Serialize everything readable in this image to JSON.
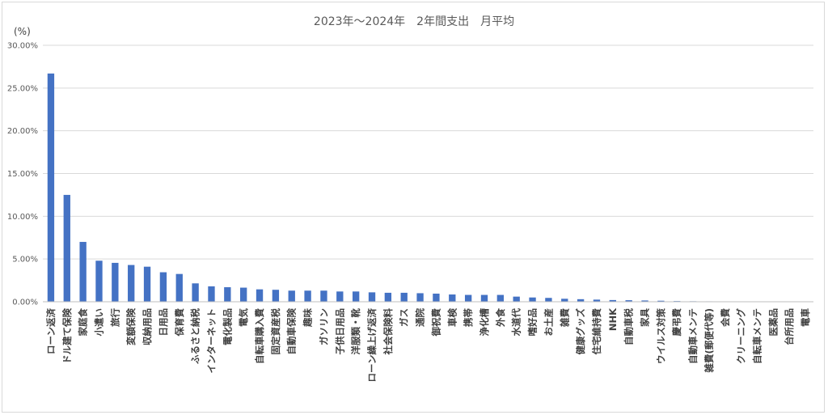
{
  "chart_data": {
    "type": "bar",
    "title": "2023年～2024年　2年間支出　月平均",
    "ylabel": "(%)",
    "xlabel": "",
    "ylim": [
      0,
      30
    ],
    "yticks": [
      "0.00%",
      "5.00%",
      "10.00%",
      "15.00%",
      "20.00%",
      "25.00%",
      "30.00%"
    ],
    "grid": true,
    "legend": "none",
    "bar_color": "#4472c4",
    "categories": [
      "ローン返済",
      "ドル建て保険",
      "家庭食",
      "小遣い",
      "旅行",
      "変額保険",
      "収納用品",
      "日用品",
      "保育費",
      "ふるさと納税",
      "インターネット",
      "電化製品",
      "電気",
      "自転車購入費",
      "固定資産税",
      "自動車保険",
      "趣味",
      "ガソリン",
      "子供日用品",
      "洋服類・靴",
      "ローン繰上げ返済",
      "社会保険料",
      "ガス",
      "通院",
      "御祝費",
      "車検",
      "携帯",
      "浄化槽",
      "外食",
      "水道代",
      "嗜好品",
      "お土産",
      "雑費",
      "健康グッズ",
      "住宅維持費",
      "NHK",
      "自動車税",
      "家具",
      "ウイルス対策",
      "慶弔費",
      "自動車メンテ",
      "雑費(郵便代等)",
      "会費",
      "クリーニング",
      "自転車メンテ",
      "医薬品",
      "台所用品",
      "電車"
    ],
    "values": [
      26.7,
      12.5,
      7.0,
      4.8,
      4.55,
      4.3,
      4.1,
      3.45,
      3.25,
      2.15,
      1.8,
      1.7,
      1.65,
      1.45,
      1.4,
      1.3,
      1.3,
      1.3,
      1.2,
      1.2,
      1.1,
      1.05,
      1.05,
      1.0,
      0.95,
      0.85,
      0.8,
      0.8,
      0.8,
      0.6,
      0.5,
      0.45,
      0.35,
      0.3,
      0.25,
      0.2,
      0.18,
      0.15,
      0.12,
      0.08,
      0.06,
      0.05,
      0.04,
      0.03,
      0.02,
      0.02,
      0.01,
      0.01
    ]
  }
}
